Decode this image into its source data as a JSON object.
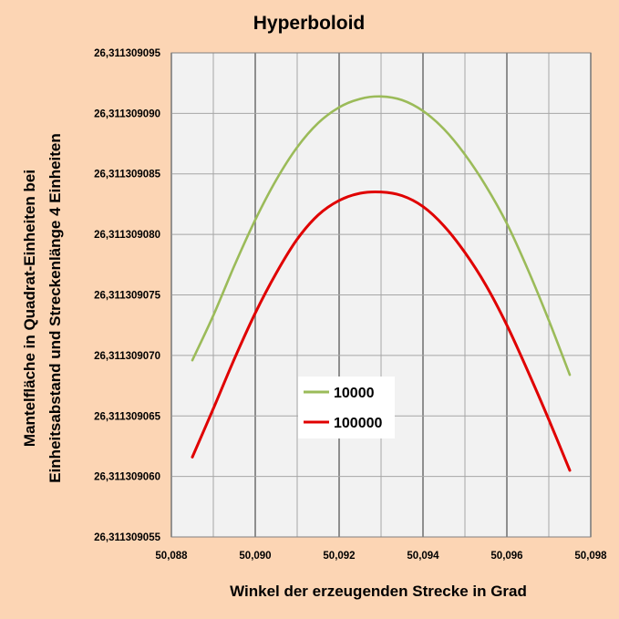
{
  "chart_data": {
    "type": "line",
    "title": "Hyperboloid",
    "xlabel": "Winkel der erzeugenden Strecke in Grad",
    "ylabel_line1": "Mantelfläche in Quadrat-Einheiten bei",
    "ylabel_line2": "Einheitsabstand und  Streckenlänge 4 Einheiten",
    "xlim": [
      50.088,
      50.098
    ],
    "ylim": [
      26.311309055,
      26.311309095
    ],
    "x_ticks": [
      {
        "value": 50.088,
        "label": "50,088"
      },
      {
        "value": 50.09,
        "label": "50,090"
      },
      {
        "value": 50.092,
        "label": "50,092"
      },
      {
        "value": 50.094,
        "label": "50,094"
      },
      {
        "value": 50.096,
        "label": "50,096"
      },
      {
        "value": 50.098,
        "label": "50,098"
      }
    ],
    "y_ticks": [
      {
        "value": 26.311309055,
        "label": "26,311309055"
      },
      {
        "value": 26.31130906,
        "label": "26,311309060"
      },
      {
        "value": 26.311309065,
        "label": "26,311309065"
      },
      {
        "value": 26.31130907,
        "label": "26,311309070"
      },
      {
        "value": 26.311309075,
        "label": "26,311309075"
      },
      {
        "value": 26.31130908,
        "label": "26,311309080"
      },
      {
        "value": 26.311309085,
        "label": "26,311309085"
      },
      {
        "value": 26.31130909,
        "label": "26,311309090"
      },
      {
        "value": 26.311309095,
        "label": "26,311309095"
      }
    ],
    "grid": true,
    "legend_position": "center",
    "series": [
      {
        "name": "10000",
        "color": "#9bbb59",
        "x": [
          50.0885,
          50.089,
          50.0895,
          50.09,
          50.0905,
          50.091,
          50.0915,
          50.092,
          50.0925,
          50.093,
          50.0935,
          50.094,
          50.0945,
          50.095,
          50.0955,
          50.096,
          50.0965,
          50.097,
          50.0975
        ],
        "y": [
          26.3113090696,
          26.3113090733,
          26.3113090774,
          26.3113090812,
          26.3113090845,
          26.3113090872,
          26.3113090892,
          26.3113090905,
          26.3113090912,
          26.3113090914,
          26.3113090911,
          26.3113090902,
          26.3113090887,
          26.3113090866,
          26.311309084,
          26.3113090809,
          26.3113090771,
          26.3113090729,
          26.3113090684
        ]
      },
      {
        "name": "100000",
        "color": "#e00000",
        "x": [
          50.0885,
          50.089,
          50.0895,
          50.09,
          50.0905,
          50.091,
          50.0915,
          50.092,
          50.0925,
          50.093,
          50.0935,
          50.094,
          50.0945,
          50.095,
          50.0955,
          50.096,
          50.0965,
          50.097,
          50.0975
        ],
        "y": [
          26.3113090616,
          26.3113090656,
          26.3113090697,
          26.3113090735,
          26.3113090768,
          26.3113090796,
          26.3113090816,
          26.3113090828,
          26.3113090834,
          26.3113090835,
          26.3113090832,
          26.3113090823,
          26.3113090807,
          26.3113090785,
          26.3113090758,
          26.3113090725,
          26.3113090687,
          26.3113090647,
          26.3113090605
        ]
      }
    ]
  }
}
